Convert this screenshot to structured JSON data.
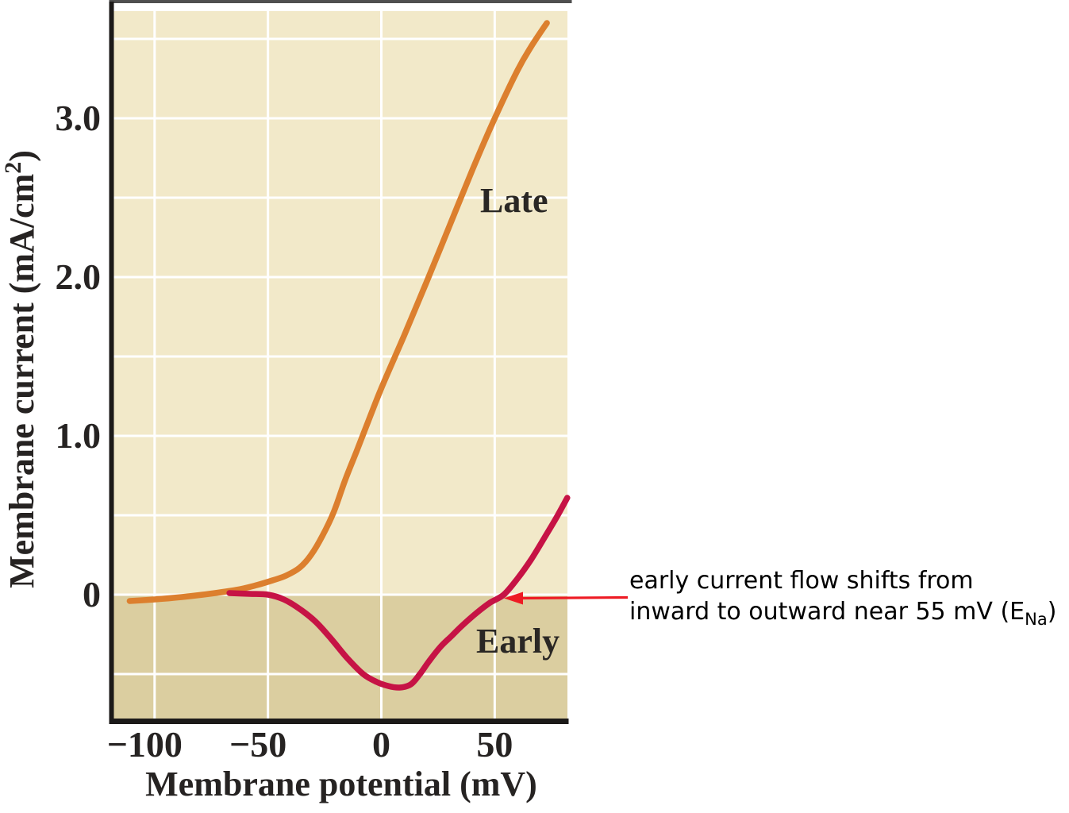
{
  "colors": {
    "page_bg": "#ffffff",
    "plot_bg_positive": "#f2e9c9",
    "plot_bg_negative": "#dbcea0",
    "gridline": "#ffffff",
    "axis": "#1c1a19",
    "top_edge": "#4f4f4f",
    "late_curve": "#dc7f2e",
    "early_curve": "#c61345",
    "arrow": "#ee1b24",
    "tick_text": "#262322",
    "annotation_text": "#000000"
  },
  "chart_data": {
    "type": "line",
    "title": "",
    "xlabel": "Membrane potential (mV)",
    "ylabel": "Membrane current (mA/cm²)",
    "ylabel_parts": {
      "prefix": "Membrane current (mA/cm",
      "sup": "2",
      "suffix": ")"
    },
    "xlim": [
      -118,
      82
    ],
    "ylim": [
      -0.78,
      3.68
    ],
    "grid": {
      "x_values": [
        -100,
        -50,
        0,
        50
      ],
      "y_values": [
        -0.5,
        0,
        0.5,
        1.0,
        1.5,
        2.0,
        2.5,
        3.0,
        3.5
      ]
    },
    "x_ticks": [
      {
        "value": -100,
        "label": "−100"
      },
      {
        "value": -50,
        "label": "−50"
      },
      {
        "value": 0,
        "label": "0"
      },
      {
        "value": 50,
        "label": "50"
      }
    ],
    "y_ticks": [
      {
        "value": 0,
        "label": "0"
      },
      {
        "value": 1,
        "label": "1.0"
      },
      {
        "value": 2,
        "label": "2.0"
      },
      {
        "value": 3,
        "label": "3.0"
      }
    ],
    "legend_position": "inline-labels",
    "series": [
      {
        "name": "Late",
        "color_key": "late_curve",
        "points": [
          [
            -111,
            -0.04
          ],
          [
            -100,
            -0.03
          ],
          [
            -88,
            -0.015
          ],
          [
            -76,
            0.005
          ],
          [
            -64,
            0.03
          ],
          [
            -55,
            0.06
          ],
          [
            -48,
            0.09
          ],
          [
            -42,
            0.12
          ],
          [
            -36,
            0.17
          ],
          [
            -31,
            0.25
          ],
          [
            -26,
            0.37
          ],
          [
            -21,
            0.52
          ],
          [
            -16,
            0.72
          ],
          [
            -11,
            0.9
          ],
          [
            -5,
            1.12
          ],
          [
            0,
            1.3
          ],
          [
            10,
            1.63
          ],
          [
            20,
            1.97
          ],
          [
            30,
            2.32
          ],
          [
            40,
            2.67
          ],
          [
            50,
            3.0
          ],
          [
            60,
            3.3
          ],
          [
            66,
            3.45
          ],
          [
            73,
            3.6
          ]
        ]
      },
      {
        "name": "Early",
        "color_key": "early_curve",
        "points": [
          [
            -67,
            0.01
          ],
          [
            -58,
            0.005
          ],
          [
            -50,
            0.0
          ],
          [
            -43,
            -0.03
          ],
          [
            -36,
            -0.09
          ],
          [
            -29,
            -0.17
          ],
          [
            -22,
            -0.28
          ],
          [
            -15,
            -0.4
          ],
          [
            -8,
            -0.5
          ],
          [
            -2,
            -0.55
          ],
          [
            3,
            -0.575
          ],
          [
            8,
            -0.585
          ],
          [
            13,
            -0.565
          ],
          [
            17,
            -0.5
          ],
          [
            21,
            -0.42
          ],
          [
            26,
            -0.33
          ],
          [
            31,
            -0.26
          ],
          [
            36,
            -0.19
          ],
          [
            42,
            -0.115
          ],
          [
            48,
            -0.05
          ],
          [
            54,
            0.0
          ],
          [
            60,
            0.1
          ],
          [
            66,
            0.22
          ],
          [
            72,
            0.36
          ],
          [
            77,
            0.48
          ],
          [
            82,
            0.61
          ]
        ]
      }
    ],
    "annotations": [
      {
        "text": "early current flow shifts from inward to outward near 55 mV (E_Na)",
        "arrow_points_to_mV": 55,
        "arrow_points_to_mA": 0
      }
    ]
  },
  "labels": {
    "late": "Late",
    "early": "Early"
  },
  "annotation": {
    "line1": "early current flow shifts from",
    "line2_prefix": "inward to outward near 55 mV (E",
    "line2_sub": "Na",
    "line2_suffix": ")"
  }
}
